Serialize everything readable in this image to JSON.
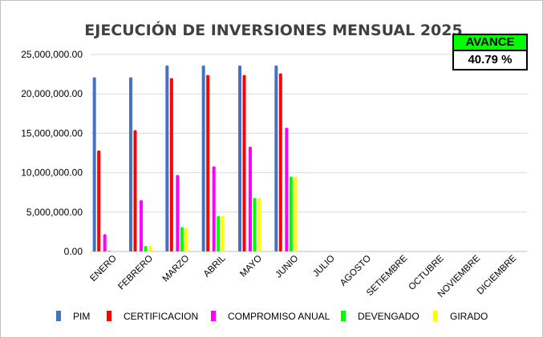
{
  "chart_data": {
    "type": "bar",
    "title": "EJECUCIÓN DE INVERSIONES MENSUAL 2025",
    "xlabel": "",
    "ylabel": "",
    "ylim": [
      0,
      25000000
    ],
    "yticks": [
      "0.00",
      "5,000,000.00",
      "10,000,000.00",
      "15,000,000.00",
      "20,000,000.00",
      "25,000,000.00"
    ],
    "grid": true,
    "legend_position": "bottom",
    "categories": [
      "ENERO",
      "FEBRERO",
      "MARZO",
      "ABRIL",
      "MAYO",
      "JUNIO",
      "JULIO",
      "AGOSTO",
      "SETIEMBRE",
      "OCTUBRE",
      "NOVIEMBRE",
      "DICIEMBRE"
    ],
    "series": [
      {
        "name": "PIM",
        "color": "#4472c4",
        "values": [
          22100000,
          22100000,
          23600000,
          23600000,
          23600000,
          23600000,
          null,
          null,
          null,
          null,
          null,
          null
        ]
      },
      {
        "name": "CERTIFICACION",
        "color": "#ff0000",
        "values": [
          12800000,
          15400000,
          22000000,
          22400000,
          22400000,
          22600000,
          null,
          null,
          null,
          null,
          null,
          null
        ]
      },
      {
        "name": "COMPROMISO ANUAL",
        "color": "#ff00ff",
        "values": [
          2200000,
          6500000,
          9700000,
          10800000,
          13300000,
          15700000,
          null,
          null,
          null,
          null,
          null,
          null
        ]
      },
      {
        "name": "DEVENGADO",
        "color": "#00ff00",
        "values": [
          100000,
          700000,
          3100000,
          4500000,
          6800000,
          9500000,
          null,
          null,
          null,
          null,
          null,
          null
        ]
      },
      {
        "name": "GIRADO",
        "color": "#ffff00",
        "values": [
          0,
          700000,
          3000000,
          4500000,
          6800000,
          9500000,
          null,
          null,
          null,
          null,
          null,
          null
        ]
      }
    ]
  },
  "avance": {
    "label": "AVANCE",
    "value": "40.79 %",
    "header_color": "#00ff00"
  }
}
